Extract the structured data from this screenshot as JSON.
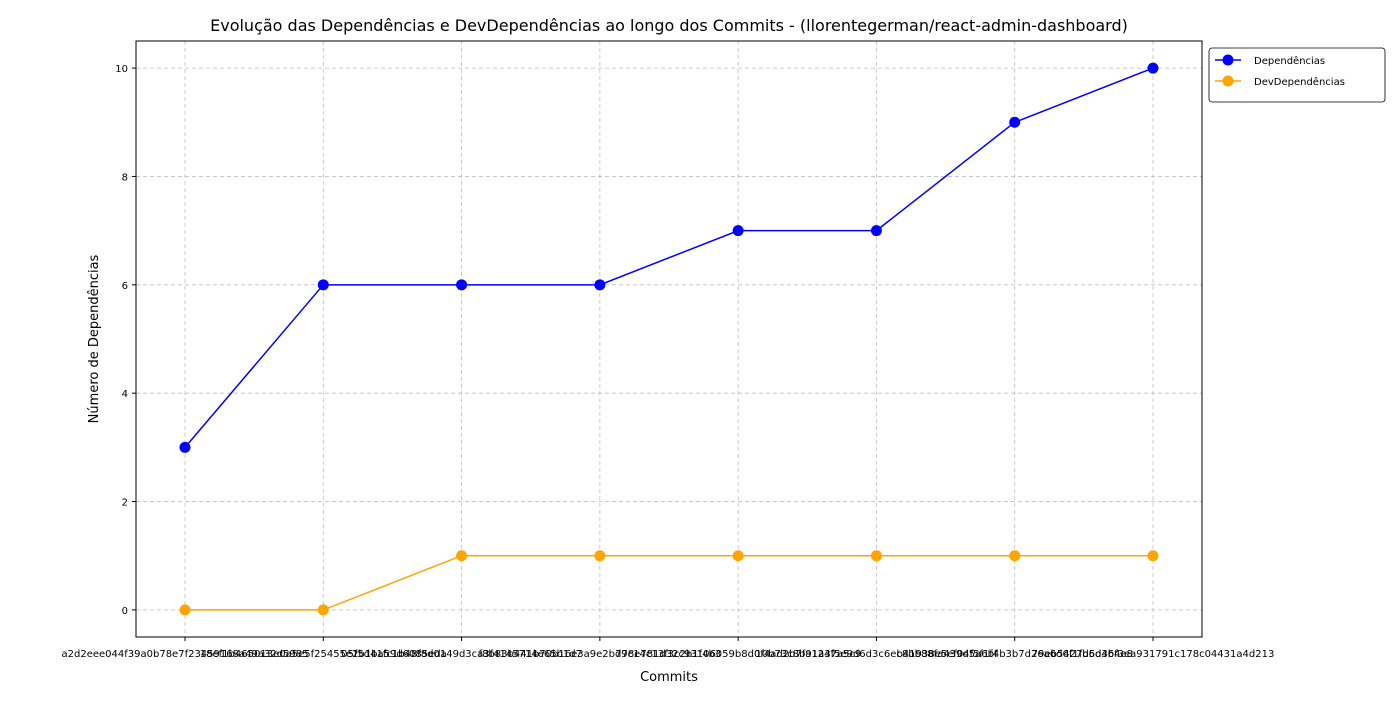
{
  "chart_data": {
    "type": "line",
    "title": "Evolução das Dependências e DevDependências ao longo dos Commits - (llorentegerman/react-admin-dashboard)",
    "xlabel": "Commits",
    "ylabel": "Número de Dependências",
    "categories": [
      "a2d2eee044f39a0b78e7f23459168a49a32d5985",
      "18ef1b465013e0a5e5f25455e2b1ba59d6085eda",
      "05f5d41fc1b48f8d0149d3ca3f4145714e65b1d7",
      "f8b83b441b70b16e3a9e2bd9c14c13f3c2b1f4b3",
      "778e781d32c93106059b8d0f4ad2b7fa1247a5c9",
      "10b73c8b91a3f5e9d6d3c6ec8bb88fa439d5a6bf",
      "b41938e5ef04f5f1f4b3b7d26a6d6f1fb6d3b4e8",
      "79eb5427d5d46f3ea931791c178c04431a4d213"
    ],
    "series": [
      {
        "name": "Dependências",
        "color": "#0000ff",
        "values": [
          3,
          6,
          6,
          6,
          7,
          7,
          9,
          10
        ]
      },
      {
        "name": "DevDependências",
        "color": "#ffa500",
        "values": [
          0,
          0,
          1,
          1,
          1,
          1,
          1,
          1
        ]
      }
    ],
    "ylim": [
      -0.5,
      10.5
    ],
    "yticks": [
      0,
      2,
      4,
      6,
      8,
      10
    ],
    "grid": true,
    "legend_position": "top-right"
  }
}
